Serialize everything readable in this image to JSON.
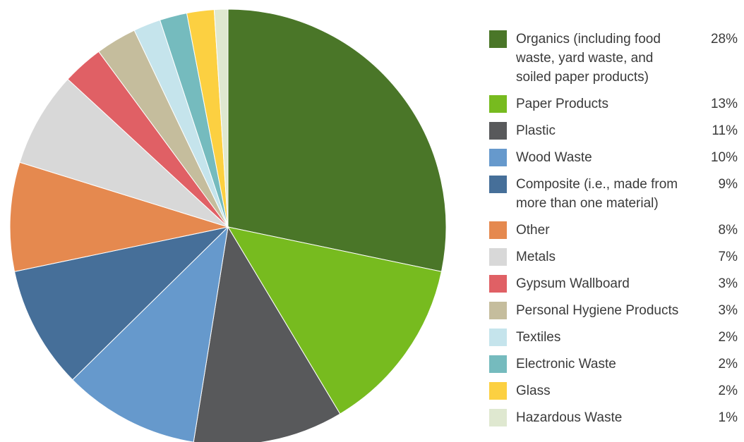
{
  "chart_data": {
    "type": "pie",
    "title": "",
    "legend_position": "right",
    "slices": [
      {
        "label": "Organics (including food waste, yard waste, and soiled paper products)",
        "label_lines": [
          "Organics (including food",
          "waste, yard waste, and",
          "soiled paper products)"
        ],
        "value": 28,
        "value_text": "28%",
        "color": "#4a7628"
      },
      {
        "label": "Paper Products",
        "label_lines": [
          "Paper Products"
        ],
        "value": 13,
        "value_text": "13%",
        "color": "#77bb1f"
      },
      {
        "label": "Plastic",
        "label_lines": [
          "Plastic"
        ],
        "value": 11,
        "value_text": "11%",
        "color": "#58595b"
      },
      {
        "label": "Wood Waste",
        "label_lines": [
          "Wood Waste"
        ],
        "value": 10,
        "value_text": "10%",
        "color": "#6699cc"
      },
      {
        "label": "Composite (i.e., made from more than one material)",
        "label_lines": [
          "Composite (i.e., made from",
          "more than one material)"
        ],
        "value": 9,
        "value_text": "9%",
        "color": "#466f99"
      },
      {
        "label": "Other",
        "label_lines": [
          "Other"
        ],
        "value": 8,
        "value_text": "8%",
        "color": "#e5894f"
      },
      {
        "label": "Metals",
        "label_lines": [
          "Metals"
        ],
        "value": 7,
        "value_text": "7%",
        "color": "#d8d8d8"
      },
      {
        "label": "Gypsum Wallboard",
        "label_lines": [
          "Gypsum Wallboard"
        ],
        "value": 3,
        "value_text": "3%",
        "color": "#e06065"
      },
      {
        "label": "Personal Hygiene Products",
        "label_lines": [
          "Personal Hygiene Products"
        ],
        "value": 3,
        "value_text": "3%",
        "color": "#c5bd9d"
      },
      {
        "label": "Textiles",
        "label_lines": [
          "Textiles"
        ],
        "value": 2,
        "value_text": "2%",
        "color": "#c5e4ec"
      },
      {
        "label": "Electronic Waste",
        "label_lines": [
          "Electronic Waste"
        ],
        "value": 2,
        "value_text": "2%",
        "color": "#75bbbe"
      },
      {
        "label": "Glass",
        "label_lines": [
          "Glass"
        ],
        "value": 2,
        "value_text": "2%",
        "color": "#fcd041"
      },
      {
        "label": "Hazardous Waste",
        "label_lines": [
          "Hazardous Waste"
        ],
        "value": 1,
        "value_text": "1%",
        "color": "#dfe8d0"
      }
    ]
  }
}
